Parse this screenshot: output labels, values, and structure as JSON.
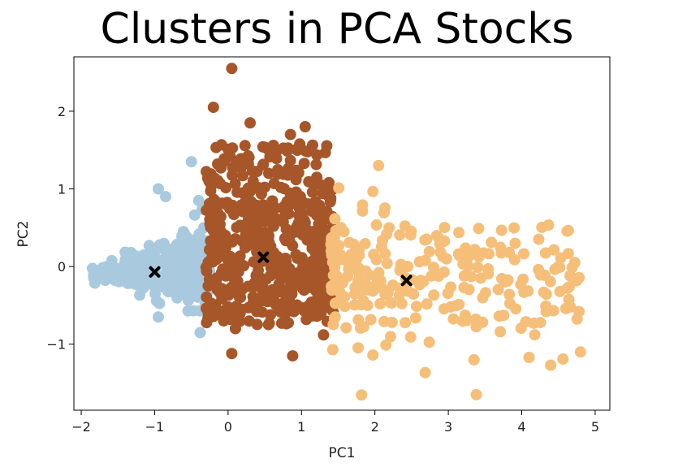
{
  "chart_data": {
    "type": "scatter",
    "title": "Clusters in PCA Stocks",
    "xlabel": "PC1",
    "ylabel": "PC2",
    "xlim": [
      -2.1,
      5.2
    ],
    "ylim": [
      -1.85,
      2.7
    ],
    "xticks": [
      -2,
      -1,
      0,
      1,
      2,
      3,
      4,
      5
    ],
    "yticks": [
      -1,
      0,
      1,
      2
    ],
    "grid": false,
    "clusters": [
      {
        "color": "#a9c9df",
        "x_range": [
          -1.85,
          -0.25
        ],
        "y_center": -0.1,
        "count": 320,
        "outliers": [
          [
            -0.5,
            1.35
          ],
          [
            -0.95,
            1.0
          ],
          [
            -0.85,
            0.9
          ],
          [
            -0.4,
            0.85
          ],
          [
            -0.95,
            -0.65
          ],
          [
            -0.38,
            -0.85
          ]
        ]
      },
      {
        "color": "#a65628",
        "x_range": [
          -0.3,
          1.45
        ],
        "y_center": 0.05,
        "count": 520,
        "outliers": [
          [
            0.05,
            2.55
          ],
          [
            -0.2,
            2.05
          ],
          [
            0.3,
            1.85
          ],
          [
            0.85,
            1.7
          ],
          [
            1.05,
            1.8
          ],
          [
            0.1,
            -0.8
          ],
          [
            0.05,
            -1.12
          ],
          [
            0.88,
            -1.15
          ],
          [
            1.3,
            -0.88
          ]
        ]
      },
      {
        "color": "#f5bf7a",
        "x_range": [
          1.4,
          4.8
        ],
        "y_center": -0.2,
        "count": 260,
        "outliers": [
          [
            3.38,
            -1.65
          ],
          [
            3.35,
            -1.2
          ],
          [
            4.8,
            -1.1
          ],
          [
            4.78,
            -0.58
          ],
          [
            2.05,
            1.3
          ]
        ]
      }
    ],
    "centroids": [
      {
        "x": -1.0,
        "y": -0.07
      },
      {
        "x": 0.48,
        "y": 0.12
      },
      {
        "x": 2.43,
        "y": -0.18
      }
    ]
  }
}
